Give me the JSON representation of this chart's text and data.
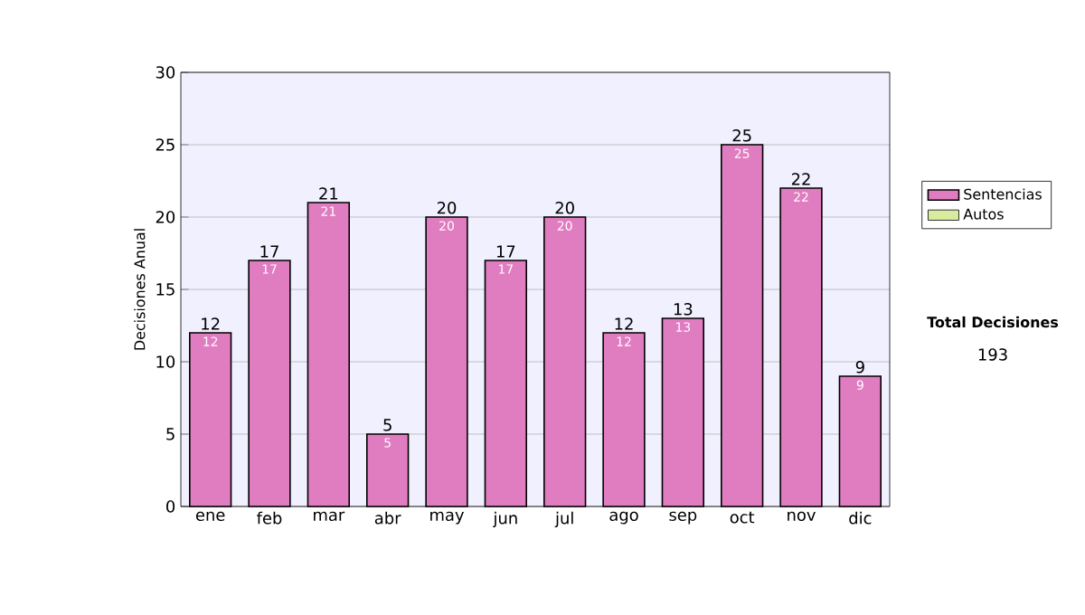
{
  "chart_data": {
    "type": "bar",
    "stacked": true,
    "ylabel": "Decisiones Anual",
    "categories": [
      "ene",
      "feb",
      "mar",
      "abr",
      "may",
      "jun",
      "jul",
      "ago",
      "sep",
      "oct",
      "nov",
      "dic"
    ],
    "series": [
      {
        "name": "Sentencias",
        "color": "#e07cc0",
        "values": [
          12,
          17,
          21,
          5,
          20,
          17,
          20,
          12,
          13,
          25,
          22,
          9
        ],
        "value_labels": [
          "12",
          "17",
          "21",
          "5",
          "20",
          "17",
          "20",
          "12",
          "13",
          "25",
          "22",
          "9"
        ]
      },
      {
        "name": "Autos",
        "color": "#d8eca0",
        "values": [
          null,
          null,
          null,
          null,
          null,
          null,
          null,
          null,
          null,
          null,
          null,
          null
        ]
      }
    ],
    "totals": [
      "12",
      "17",
      "21",
      "5",
      "20",
      "17",
      "20",
      "12",
      "13",
      "25",
      "22",
      "9"
    ],
    "ylim": [
      0,
      30
    ],
    "yticks": [
      0,
      5,
      10,
      15,
      20,
      25,
      30
    ],
    "grid": "y",
    "legend": "right",
    "annotations": [
      "Total Decisiones",
      "193"
    ]
  }
}
